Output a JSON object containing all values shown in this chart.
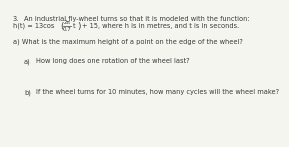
{
  "background_color": "#f5f5f0",
  "number": "3.",
  "line1": "An industrial fly-wheel turns so that it is modeled with the function:",
  "formula_prefix": "h(t) = 13cos",
  "formula_frac_num": "2π",
  "formula_frac_den": "0.7",
  "formula_t": "t",
  "formula_suffix": "+ 15, where h is in metres, and t is in seconds.",
  "question_a": "a) What is the maximum height of a point on the edge of the wheel?",
  "sub_a_label": "a)",
  "sub_a_text": "How long does one rotation of the wheel last?",
  "sub_b_label": "b)",
  "sub_b_text": "If the wheel turns for 10 minutes, how many cycles will the wheel make?",
  "text_color": "#3a3a3a",
  "fontsize": 4.8
}
